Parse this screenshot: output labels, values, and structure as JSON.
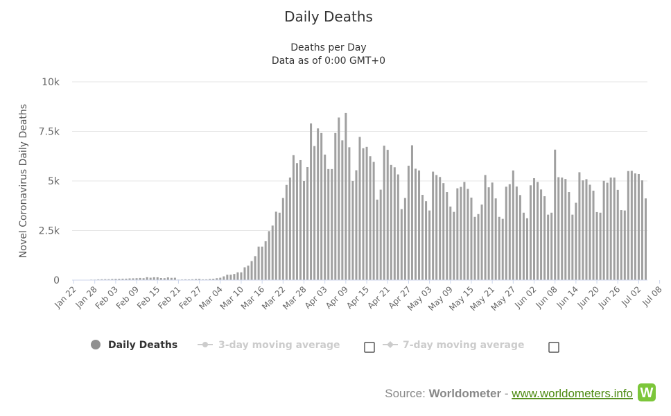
{
  "chart_data": {
    "type": "bar",
    "title": "Daily Deaths",
    "subtitle_lines": [
      "Deaths per Day",
      "Data as of 0:00 GMT+0"
    ],
    "ylabel": "Novel Coronavirus Daily Deaths",
    "ylim": [
      0,
      10000
    ],
    "yticks": [
      {
        "value": 0,
        "label": "0"
      },
      {
        "value": 2500,
        "label": "2.5k"
      },
      {
        "value": 5000,
        "label": "5k"
      },
      {
        "value": 7500,
        "label": "7.5k"
      },
      {
        "value": 10000,
        "label": "10k"
      }
    ],
    "xtick_labels": [
      "Jan 22",
      "Jan 28",
      "Feb 03",
      "Feb 09",
      "Feb 15",
      "Feb 21",
      "Feb 27",
      "Mar 04",
      "Mar 10",
      "Mar 16",
      "Mar 22",
      "Mar 28",
      "Apr 03",
      "Apr 09",
      "Apr 15",
      "Apr 21",
      "Apr 27",
      "May 03",
      "May 09",
      "May 15",
      "May 21",
      "May 27",
      "Jun 02",
      "Jun 08",
      "Jun 14",
      "Jun 20",
      "Jun 26",
      "Jul 02",
      "Jul 08"
    ],
    "xtick_step_days": 6,
    "grid": true,
    "bar_color": "#a0a0a0",
    "series": [
      {
        "name": "Daily Deaths",
        "start_date": "Jan 22",
        "values": [
          17,
          0,
          8,
          16,
          14,
          26,
          26,
          38,
          43,
          46,
          46,
          57,
          64,
          66,
          72,
          73,
          86,
          89,
          97,
          108,
          97,
          146,
          121,
          143,
          142,
          105,
          98,
          136,
          114,
          120,
          26,
          31,
          38,
          35,
          43,
          57,
          64,
          36,
          40,
          58,
          68,
          96,
          120,
          189,
          271,
          272,
          309,
          392,
          392,
          646,
          730,
          960,
          1210,
          1690,
          1690,
          1960,
          2470,
          2750,
          3450,
          3400,
          4140,
          4800,
          5170,
          6300,
          5900,
          6050,
          5000,
          5700,
          7900,
          6760,
          7650,
          7420,
          6330,
          5600,
          5600,
          7420,
          8200,
          7050,
          8430,
          6700,
          5000,
          5540,
          7220,
          6650,
          6720,
          6250,
          5960,
          4060,
          4560,
          6780,
          6570,
          5810,
          5690,
          5330,
          3580,
          4140,
          5770,
          6800,
          5620,
          5530,
          4300,
          3980,
          3510,
          5470,
          5300,
          5200,
          4890,
          4440,
          3710,
          3440,
          4630,
          4700,
          4950,
          4600,
          4160,
          3190,
          3330,
          3810,
          5300,
          4680,
          4920,
          4120,
          3190,
          3090,
          4710,
          4840,
          5530,
          4720,
          4290,
          3400,
          3120,
          4780,
          5140,
          4950,
          4570,
          4230,
          3300,
          3400,
          6580,
          5190,
          5170,
          5100,
          4440,
          3300,
          3900,
          5440,
          5030,
          5090,
          4810,
          4510,
          3430,
          3400,
          5010,
          4910,
          5170,
          5170,
          4550,
          3530,
          3510,
          5500,
          5510,
          5380,
          5350,
          5030,
          4120
        ]
      }
    ],
    "legend": {
      "position": "bottom-center",
      "items": [
        {
          "label": "Daily Deaths",
          "active": true
        },
        {
          "label": "3-day moving average",
          "active": false
        },
        {
          "label": "7-day moving average",
          "active": false
        }
      ]
    }
  },
  "source": {
    "prefix": "Source: ",
    "name": "Worldometer",
    "separator": " - ",
    "url_text": "www.worldometers.info",
    "logo_letter": "W",
    "link_color": "#4c8a11",
    "logo_color": "#7cc63a"
  }
}
